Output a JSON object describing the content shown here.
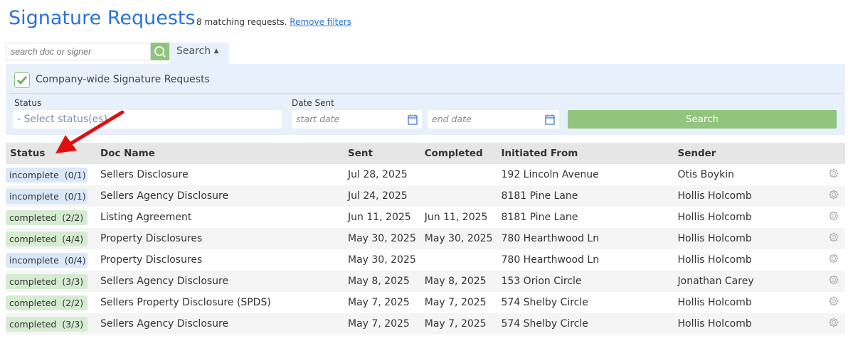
{
  "header": {
    "title": "Signature Requests",
    "match_text": "8 matching requests.",
    "remove_filters": "Remove filters"
  },
  "search": {
    "placeholder": "search doc or signer",
    "value": "",
    "tab_label": "Search"
  },
  "filters": {
    "company_wide_label": "Company-wide Signature Requests",
    "company_wide_checked": true,
    "status_label": "Status",
    "status_placeholder": "- Select status(es) -",
    "date_label": "Date Sent",
    "start_placeholder": "start date",
    "end_placeholder": "end date",
    "search_button": "Search"
  },
  "colors": {
    "accent": "#2a74d6",
    "green": "#91c47c",
    "panel": "#e8f0fb",
    "annotation_arrow": "#e01010"
  },
  "table": {
    "columns": [
      "Status",
      "Doc Name",
      "Sent",
      "Completed",
      "Initiated From",
      "Sender"
    ],
    "rows": [
      {
        "status": "incomplete",
        "count": "(0/1)",
        "doc": "Sellers Disclosure",
        "sent": "Jul 28, 2025",
        "completed": "",
        "from": "192 Lincoln Avenue",
        "sender": "Otis Boykin"
      },
      {
        "status": "incomplete",
        "count": "(0/1)",
        "doc": "Sellers Agency Disclosure",
        "sent": "Jul 24, 2025",
        "completed": "",
        "from": "8181 Pine Lane",
        "sender": "Hollis Holcomb"
      },
      {
        "status": "completed",
        "count": "(2/2)",
        "doc": "Listing Agreement",
        "sent": "Jun 11, 2025",
        "completed": "Jun 11, 2025",
        "from": "8181 Pine Lane",
        "sender": "Hollis Holcomb"
      },
      {
        "status": "completed",
        "count": "(4/4)",
        "doc": "Property Disclosures",
        "sent": "May 30, 2025",
        "completed": "May 30, 2025",
        "from": "780 Hearthwood Ln",
        "sender": "Hollis Holcomb"
      },
      {
        "status": "incomplete",
        "count": "(0/4)",
        "doc": "Property Disclosures",
        "sent": "May 30, 2025",
        "completed": "",
        "from": "780 Hearthwood Ln",
        "sender": "Hollis Holcomb"
      },
      {
        "status": "completed",
        "count": "(3/3)",
        "doc": "Sellers Agency Disclosure",
        "sent": "May 8, 2025",
        "completed": "May 8, 2025",
        "from": "153 Orion Circle",
        "sender": "Jonathan Carey"
      },
      {
        "status": "completed",
        "count": "(2/2)",
        "doc": "Sellers Property Disclosure (SPDS)",
        "sent": "May 7, 2025",
        "completed": "May 7, 2025",
        "from": "574 Shelby Circle",
        "sender": "Hollis Holcomb"
      },
      {
        "status": "completed",
        "count": "(3/3)",
        "doc": "Sellers Agency Disclosure",
        "sent": "May 7, 2025",
        "completed": "May 7, 2025",
        "from": "574 Shelby Circle",
        "sender": "Hollis Holcomb"
      }
    ]
  }
}
